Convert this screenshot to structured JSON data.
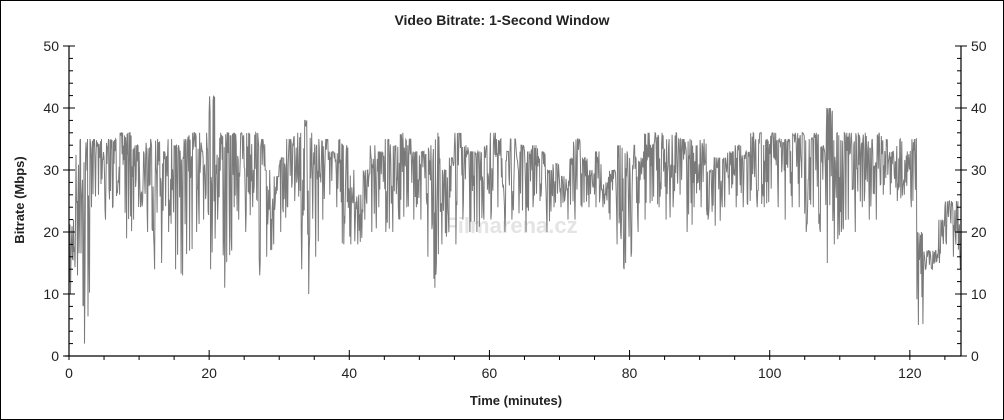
{
  "chart_data": {
    "type": "line",
    "title": "Video Bitrate: 1-Second Window",
    "xlabel": "Time (minutes)",
    "ylabel": "Bitrate (Mbps)",
    "xlim": [
      0,
      127.3
    ],
    "ylim": [
      0,
      50
    ],
    "x_ticks": [
      0,
      20,
      40,
      60,
      80,
      100,
      120
    ],
    "x_minor_step": 5,
    "y_ticks": [
      0,
      10,
      20,
      30,
      40,
      50
    ],
    "y_minor_step": 2,
    "right_axis_mirrored": true,
    "grid": false,
    "line_color": "#7a7a7a",
    "watermark": "Filmarena.cz",
    "series": [
      {
        "x_minutes_step": 1,
        "per_minute_high": [
          22,
          35,
          35,
          35,
          35,
          35,
          35,
          36,
          36,
          34,
          33,
          35,
          35,
          33,
          35,
          34,
          35,
          36,
          36,
          36,
          42,
          36,
          36,
          36,
          36,
          36,
          36,
          35,
          30,
          29,
          32,
          35,
          36,
          38,
          36,
          35,
          35,
          33,
          35,
          34,
          30,
          26,
          30,
          34,
          33,
          35,
          34,
          36,
          35,
          33,
          33,
          34,
          36,
          30,
          32,
          36,
          34,
          33,
          33,
          34,
          36,
          35,
          33,
          35,
          34,
          33,
          34,
          33,
          30,
          31,
          29,
          32,
          35,
          32,
          30,
          33,
          28,
          30,
          34,
          33,
          34,
          32,
          36,
          36,
          36,
          35,
          36,
          35,
          35,
          34,
          35,
          30,
          32,
          32,
          33,
          34,
          33,
          36,
          36,
          35,
          36,
          35,
          35,
          36,
          36,
          35,
          36,
          34,
          40,
          36,
          36,
          36,
          36,
          36,
          35,
          36,
          35,
          33,
          35,
          33,
          35,
          20,
          17,
          17,
          22,
          25,
          25,
          22
        ],
        "per_minute_low": [
          10,
          13,
          2,
          24,
          26,
          22,
          24,
          26,
          19,
          22,
          24,
          20,
          14,
          15,
          20,
          14,
          13,
          17,
          20,
          22,
          14,
          22,
          11,
          17,
          22,
          20,
          24,
          13,
          16,
          18,
          20,
          24,
          25,
          14,
          10,
          16,
          22,
          26,
          24,
          18,
          18,
          18,
          22,
          20,
          24,
          20,
          20,
          22,
          24,
          22,
          22,
          16,
          11,
          18,
          20,
          18,
          22,
          20,
          20,
          22,
          22,
          24,
          20,
          22,
          23,
          20,
          24,
          25,
          20,
          24,
          24,
          22,
          22,
          24,
          24,
          24,
          24,
          22,
          18,
          14,
          16,
          20,
          22,
          25,
          24,
          22,
          24,
          26,
          20,
          24,
          24,
          22,
          21,
          24,
          26,
          24,
          24,
          25,
          24,
          24,
          27,
          24,
          22,
          24,
          24,
          20,
          24,
          20,
          15,
          18,
          20,
          22,
          20,
          24,
          22,
          22,
          26,
          26,
          25,
          26,
          24,
          5,
          14,
          14,
          15,
          18,
          16,
          14
        ]
      }
    ]
  }
}
